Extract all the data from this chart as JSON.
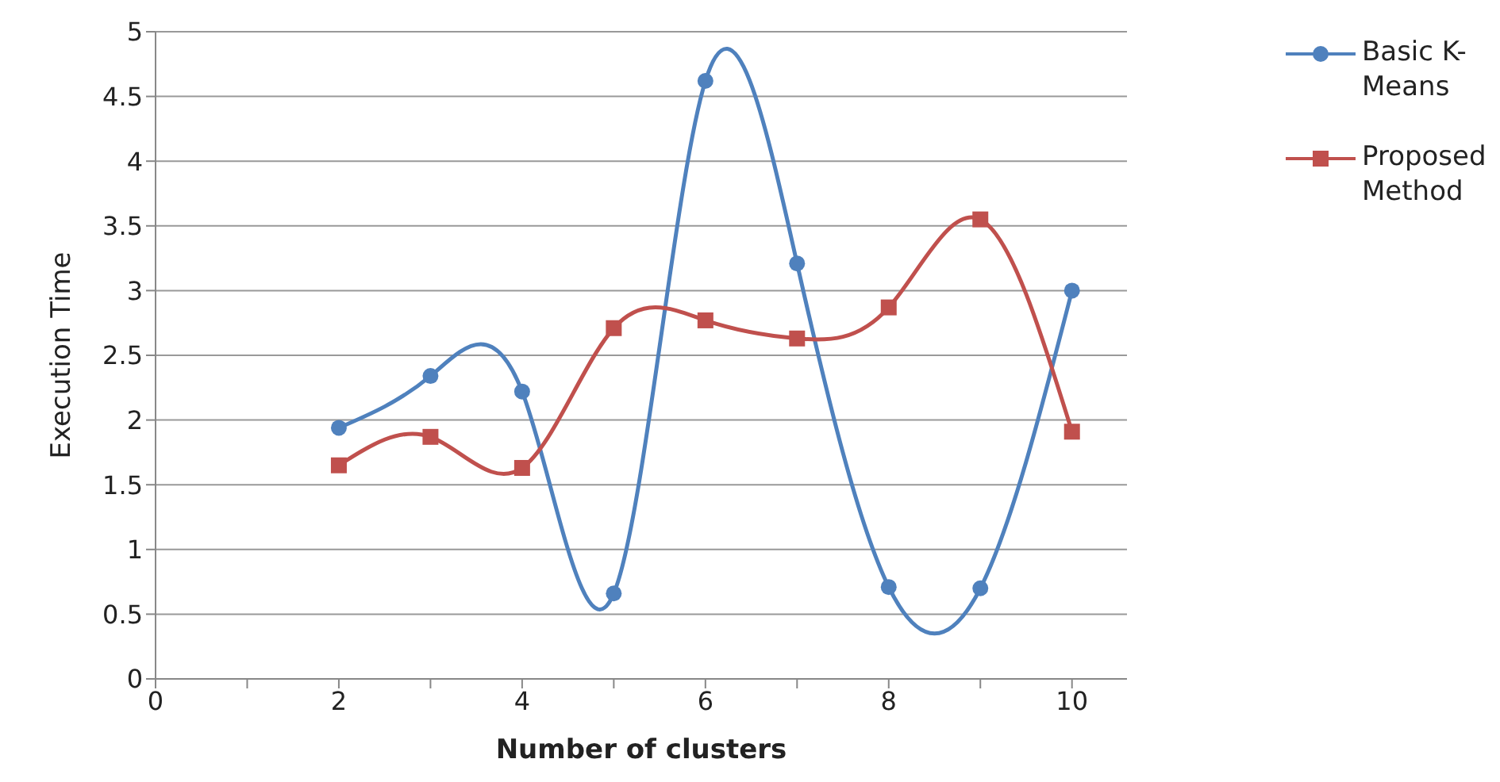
{
  "chart_data": {
    "type": "line",
    "xlabel": "Number of clusters",
    "ylabel": "Execution Time",
    "x": [
      2,
      3,
      4,
      5,
      6,
      7,
      8,
      9,
      10
    ],
    "series": [
      {
        "name": "Basic K-Means",
        "color": "#4f81bd",
        "marker": "circle",
        "values": [
          1.94,
          2.34,
          2.22,
          0.66,
          4.62,
          3.21,
          0.71,
          0.7,
          3.0
        ]
      },
      {
        "name": "Proposed Method",
        "color": "#c0504d",
        "marker": "square",
        "values": [
          1.65,
          1.87,
          1.63,
          2.71,
          2.77,
          2.63,
          2.87,
          3.55,
          1.91
        ]
      }
    ],
    "xlim": [
      0,
      10.6
    ],
    "xticks": [
      0,
      {
        "value": 1,
        "label": null
      },
      2,
      {
        "value": 3,
        "label": null
      },
      4,
      {
        "value": 5,
        "label": null
      },
      6,
      {
        "value": 7,
        "label": null
      },
      8,
      {
        "value": 9,
        "label": null
      },
      10
    ],
    "ylim": [
      0,
      5
    ],
    "yticks": [
      0,
      0.5,
      1,
      1.5,
      2,
      2.5,
      3,
      3.5,
      4,
      4.5,
      5
    ],
    "grid": "y",
    "legend": "top right",
    "line_style": "solid"
  }
}
